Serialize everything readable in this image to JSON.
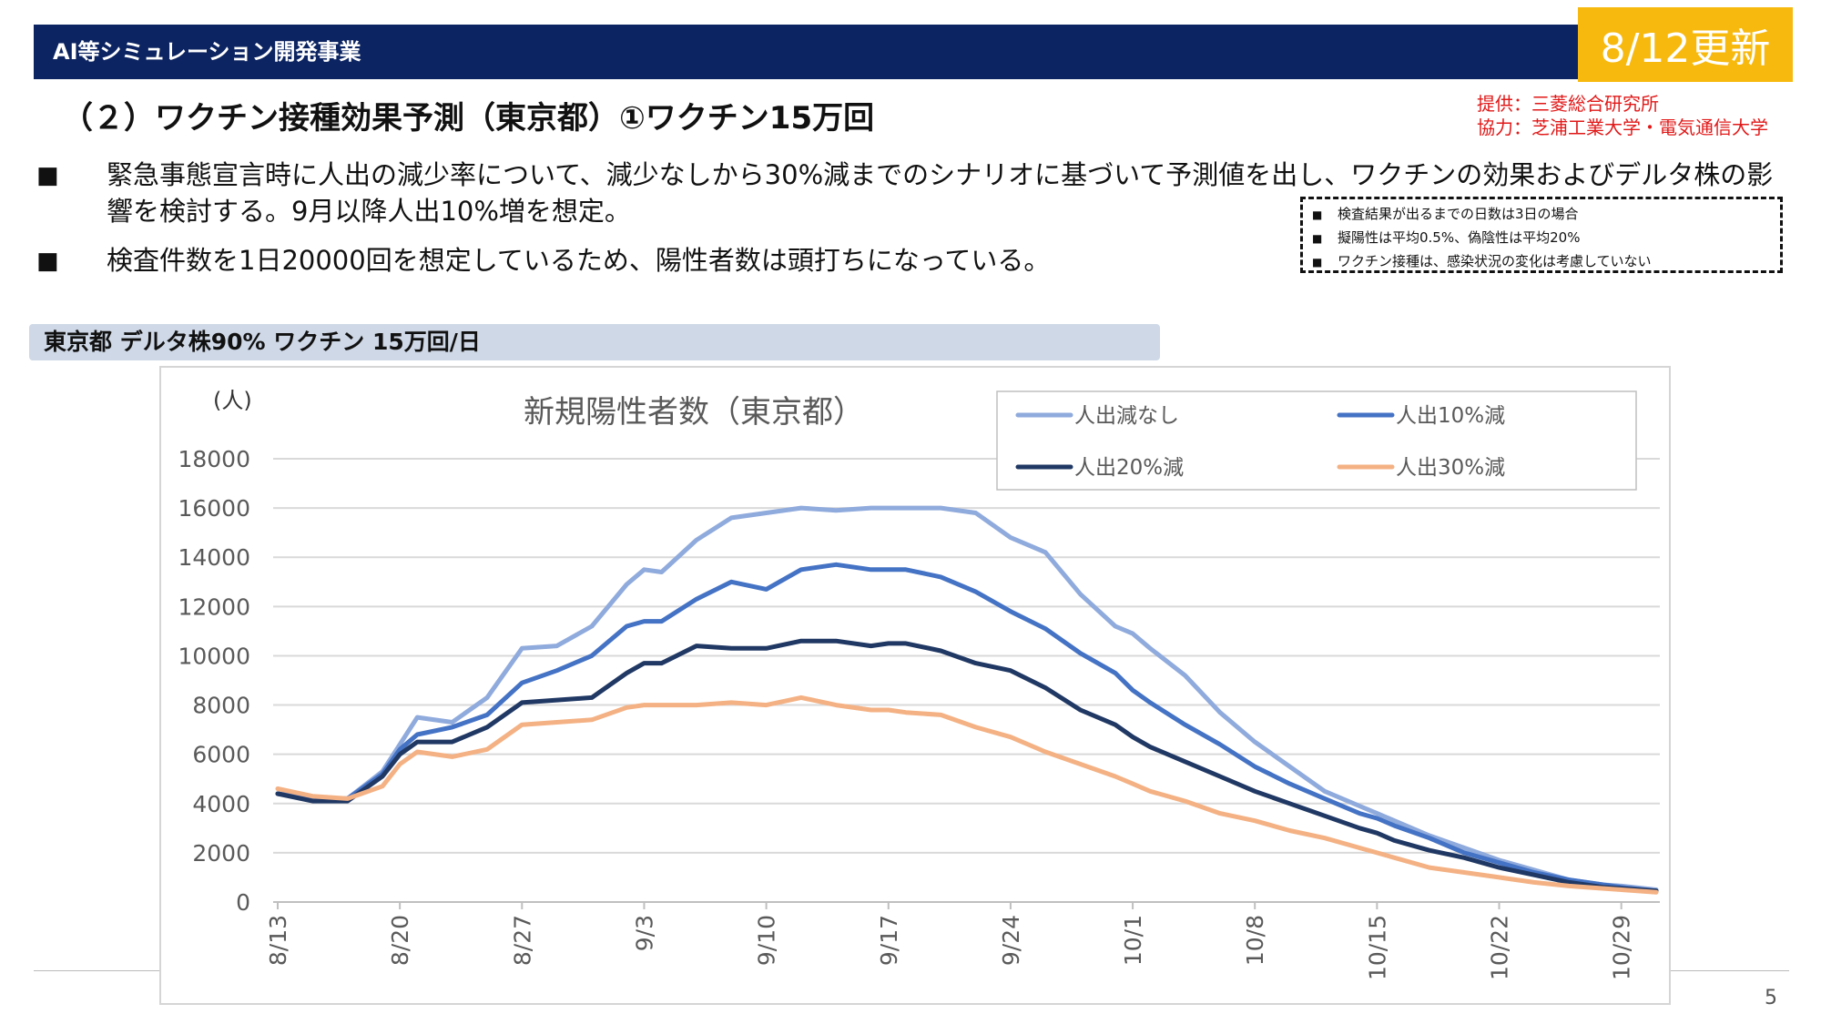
{
  "header": {
    "title": "AI等シミュレーション開発事業",
    "badge": "8/12更新"
  },
  "section_title": "（２）ワクチン接種効果予測（東京都）①ワクチン15万回",
  "credits": {
    "provider": "提供：三菱総合研究所",
    "cooperation": "協力：芝浦工業大学・電気通信大学"
  },
  "bullets": {
    "marker": "■",
    "b1": "緊急事態宣言時に人出の減少率について、減少なしから30%減までのシナリオに基づいて予測値を出し、ワクチンの効果およびデルタ株の影響を検討する。9月以降人出10%増を想定。",
    "b2": "検査件数を1日20000回を想定しているため、陽性者数は頭打ちになっている。"
  },
  "notes": {
    "marker": "■",
    "n1": "検査結果が出るまでの日数は3日の場合",
    "n2": "擬陽性は平均0.5%、偽陰性は平均20%",
    "n3": "ワクチン接種は、感染状況の変化は考慮していない"
  },
  "subhead": "東京都  デルタ株90%  ワクチン 15万回/日",
  "page_number": "5",
  "chart_data": {
    "type": "line",
    "title": "新規陽性者数（東京都）",
    "ylabel": "(人)",
    "xlabel": "",
    "ylim": [
      0,
      18000
    ],
    "yticks": [
      "0",
      "2000",
      "4000",
      "6000",
      "8000",
      "10000",
      "12000",
      "14000",
      "16000",
      "18000"
    ],
    "xtick_labels": [
      "8/13",
      "8/20",
      "8/27",
      "9/3",
      "9/10",
      "9/17",
      "9/24",
      "10/1",
      "10/8",
      "10/15",
      "10/22",
      "10/29"
    ],
    "xtick_day_index": [
      0,
      7,
      14,
      21,
      28,
      35,
      42,
      49,
      56,
      63,
      70,
      77
    ],
    "grid": "horizontal",
    "legend_position": "top-right",
    "x": [
      "8/13",
      "8/15",
      "8/17",
      "8/19",
      "8/20",
      "8/21",
      "8/23",
      "8/25",
      "8/27",
      "8/29",
      "8/31",
      "9/2",
      "9/3",
      "9/4",
      "9/6",
      "9/8",
      "9/10",
      "9/12",
      "9/14",
      "9/16",
      "9/17",
      "9/18",
      "9/20",
      "9/22",
      "9/24",
      "9/26",
      "9/28",
      "9/30",
      "10/1",
      "10/2",
      "10/4",
      "10/6",
      "10/8",
      "10/10",
      "10/12",
      "10/14",
      "10/15",
      "10/16",
      "10/18",
      "10/20",
      "10/22",
      "10/24",
      "10/26",
      "10/28",
      "10/29",
      "10/31"
    ],
    "series": [
      {
        "name": "人出減なし",
        "color": "#8faadc",
        "values": [
          4400,
          4200,
          4200,
          5300,
          6400,
          7500,
          7300,
          8300,
          10300,
          10400,
          11200,
          12900,
          13500,
          13400,
          14700,
          15600,
          15800,
          16000,
          15900,
          16000,
          16000,
          16000,
          16000,
          15800,
          14800,
          14200,
          12500,
          11200,
          10900,
          10300,
          9200,
          7700,
          6500,
          5500,
          4500,
          3900,
          3600,
          3300,
          2700,
          2200,
          1700,
          1300,
          900,
          700,
          650,
          500
        ]
      },
      {
        "name": "人出10%減",
        "color": "#4472c4",
        "values": [
          4400,
          4200,
          4200,
          5200,
          6200,
          6800,
          7100,
          7600,
          8900,
          9400,
          10000,
          11200,
          11400,
          11400,
          12300,
          13000,
          12700,
          13500,
          13700,
          13500,
          13500,
          13500,
          13200,
          12600,
          11800,
          11100,
          10100,
          9300,
          8600,
          8100,
          7200,
          6400,
          5500,
          4800,
          4200,
          3600,
          3400,
          3100,
          2600,
          2000,
          1600,
          1200,
          900,
          700,
          600,
          450
        ]
      },
      {
        "name": "人出20%減",
        "color": "#203864",
        "values": [
          4400,
          4100,
          4100,
          5100,
          6000,
          6500,
          6500,
          7100,
          8100,
          8200,
          8300,
          9300,
          9700,
          9700,
          10400,
          10300,
          10300,
          10600,
          10600,
          10400,
          10500,
          10500,
          10200,
          9700,
          9400,
          8700,
          7800,
          7200,
          6700,
          6300,
          5700,
          5100,
          4500,
          4000,
          3500,
          3000,
          2800,
          2500,
          2100,
          1800,
          1400,
          1100,
          800,
          600,
          550,
          450
        ]
      },
      {
        "name": "人出30%減",
        "color": "#f4b183",
        "values": [
          4600,
          4300,
          4200,
          4700,
          5600,
          6100,
          5900,
          6200,
          7200,
          7300,
          7400,
          7900,
          8000,
          8000,
          8000,
          8100,
          8000,
          8300,
          8000,
          7800,
          7800,
          7700,
          7600,
          7100,
          6700,
          6100,
          5600,
          5100,
          4800,
          4500,
          4100,
          3600,
          3300,
          2900,
          2600,
          2200,
          2000,
          1800,
          1400,
          1200,
          1000,
          800,
          650,
          550,
          500,
          400
        ]
      }
    ]
  }
}
